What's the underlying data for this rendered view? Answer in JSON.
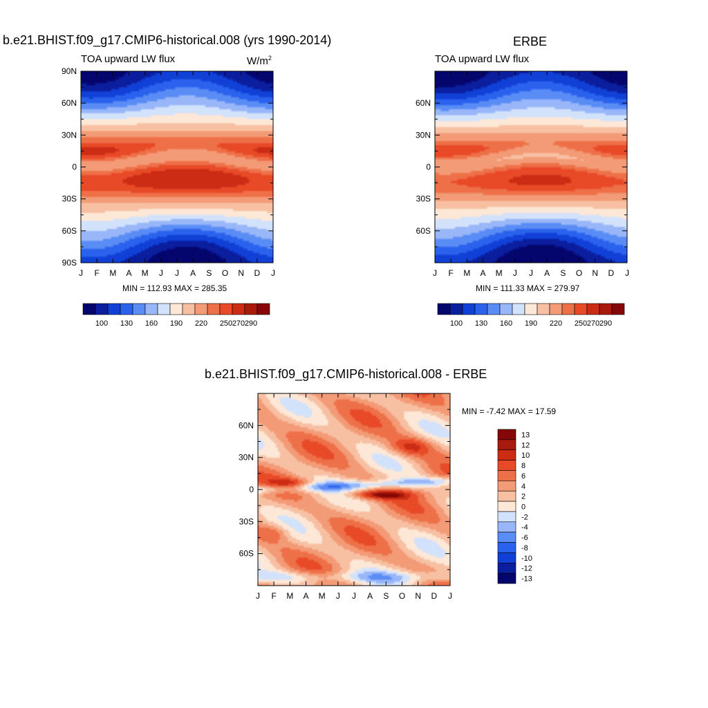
{
  "chart_data": [
    {
      "type": "heatmap",
      "id": "model",
      "title": "b.e21.BHIST.f09_g17.CMIP6-historical.008 (yrs 1990-2014)",
      "subtitle_left": "TOA upward LW flux",
      "units_base": "W/m",
      "units_sup": "2",
      "x_ticks": [
        "J",
        "F",
        "M",
        "A",
        "M",
        "J",
        "J",
        "A",
        "S",
        "O",
        "N",
        "D",
        "J"
      ],
      "y_ticks": [
        "90N",
        "60N",
        "30N",
        "0",
        "30S",
        "60S",
        "90S"
      ],
      "ylim": [
        -90,
        90
      ],
      "stats": "MIN = 112.93 MAX = 285.35",
      "colorbar_labels": [
        "100",
        "130",
        "160",
        "190",
        "220",
        "250",
        "270",
        "290"
      ],
      "min": 112.93,
      "max": 285.35
    },
    {
      "type": "heatmap",
      "id": "obs",
      "title": "ERBE",
      "subtitle_left": "TOA upward LW flux",
      "x_ticks": [
        "J",
        "F",
        "M",
        "A",
        "M",
        "J",
        "J",
        "A",
        "S",
        "O",
        "N",
        "D",
        "J"
      ],
      "y_ticks": [
        "60N",
        "30N",
        "0",
        "30S",
        "60S"
      ],
      "ylim": [
        -90,
        90
      ],
      "stats": "MIN = 111.33 MAX = 279.97",
      "colorbar_labels": [
        "100",
        "130",
        "160",
        "190",
        "220",
        "250",
        "270",
        "290"
      ],
      "min": 111.33,
      "max": 279.97
    },
    {
      "type": "heatmap",
      "id": "diff",
      "title": "b.e21.BHIST.f09_g17.CMIP6-historical.008 - ERBE",
      "x_ticks": [
        "J",
        "F",
        "M",
        "A",
        "M",
        "J",
        "J",
        "A",
        "S",
        "O",
        "N",
        "D",
        "J"
      ],
      "y_ticks": [
        "60N",
        "30N",
        "0",
        "30S",
        "60S"
      ],
      "ylim": [
        -90,
        90
      ],
      "stats": "MIN =  -7.42 MAX =  17.59",
      "colorbar_labels": [
        "13",
        "12",
        "10",
        "8",
        "6",
        "4",
        "2",
        "0",
        "-2",
        "-4",
        "-6",
        "-8",
        "-10",
        "-12",
        "-13"
      ],
      "min": -7.42,
      "max": 17.59
    }
  ],
  "colors": {
    "abs_scale": [
      "#05056e",
      "#0a1e9e",
      "#1040d6",
      "#2a62ee",
      "#5a8cf5",
      "#98b6f8",
      "#d2e2fb",
      "#fde8d8",
      "#f8c0a3",
      "#f39a76",
      "#ee7048",
      "#e84a28",
      "#cc2c14",
      "#a81a0c",
      "#850707"
    ],
    "diff_scale": [
      "#05056e",
      "#0a1e9e",
      "#1040d6",
      "#2a62ee",
      "#5a8cf5",
      "#98b6f8",
      "#d2e2fb",
      "#fde8d8",
      "#f8c0a3",
      "#f39a76",
      "#ee7048",
      "#e84a28",
      "#cc2c14",
      "#a81a0c",
      "#850707"
    ]
  }
}
